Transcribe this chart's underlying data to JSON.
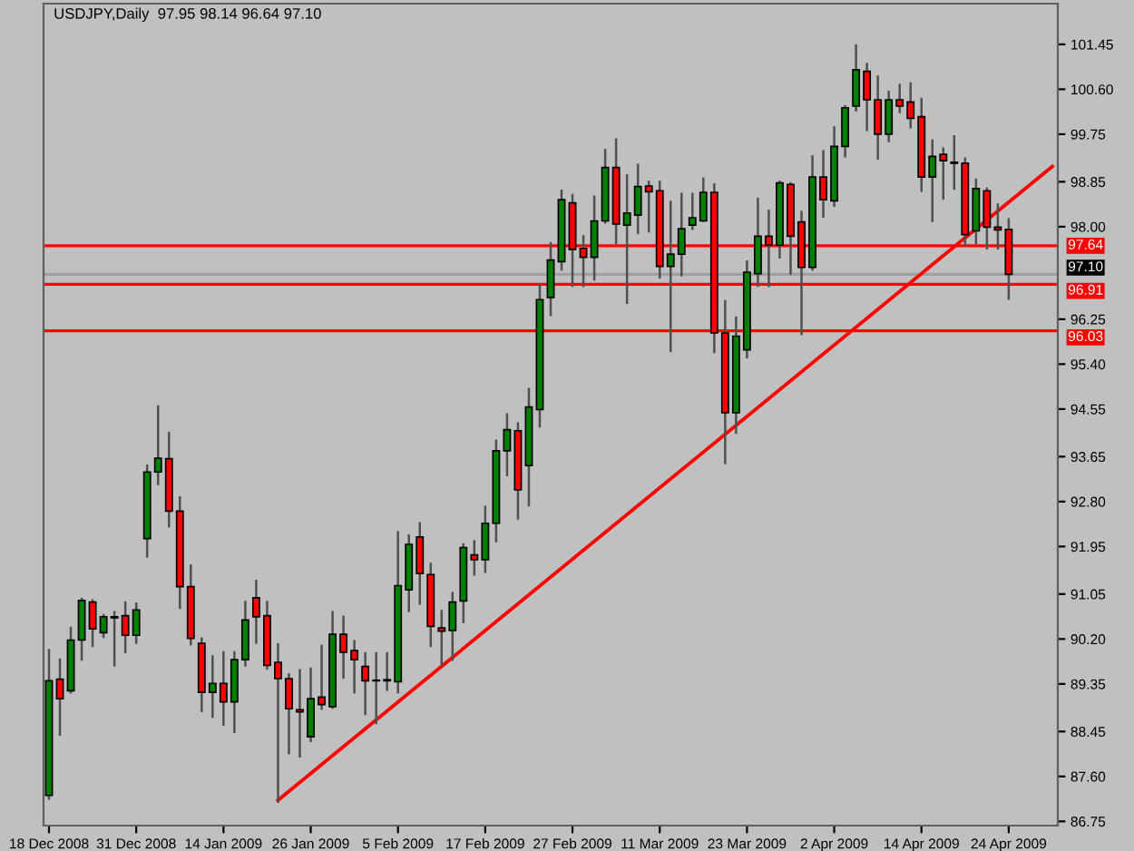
{
  "chart_data": {
    "type": "candlestick",
    "title": "USDJPY,Daily  97.95 98.14 96.64 97.10",
    "categories": [
      "18 Dec 2008",
      null,
      null,
      null,
      null,
      null,
      null,
      null,
      "31 Dec 2008",
      null,
      null,
      null,
      null,
      null,
      null,
      null,
      "14 Jan 2009",
      null,
      null,
      null,
      null,
      null,
      null,
      null,
      "26 Jan 2009",
      null,
      null,
      null,
      null,
      null,
      null,
      null,
      "5 Feb 2009",
      null,
      null,
      null,
      null,
      null,
      null,
      null,
      "17 Feb 2009",
      null,
      null,
      null,
      null,
      null,
      null,
      null,
      "27 Feb 2009",
      null,
      null,
      null,
      null,
      null,
      null,
      null,
      "11 Mar 2009",
      null,
      null,
      null,
      null,
      null,
      null,
      null,
      "23 Mar 2009",
      null,
      null,
      null,
      null,
      null,
      null,
      null,
      "2 Apr 2009",
      null,
      null,
      null,
      null,
      null,
      null,
      null,
      "14 Apr 2009",
      null,
      null,
      null,
      null,
      null,
      null,
      null,
      "24 Apr 2009",
      null,
      null,
      null,
      null
    ],
    "ohlc": [
      [
        87.24,
        89.99,
        87.18,
        89.41
      ],
      [
        89.44,
        89.81,
        88.39,
        89.07
      ],
      [
        89.22,
        90.41,
        89.19,
        90.18
      ],
      [
        90.18,
        90.96,
        89.81,
        90.93
      ],
      [
        90.9,
        90.93,
        90.07,
        90.39
      ],
      [
        90.32,
        90.65,
        90.24,
        90.62
      ],
      [
        90.6,
        90.71,
        89.7,
        90.62
      ],
      [
        90.64,
        90.89,
        89.95,
        90.27
      ],
      [
        90.27,
        90.87,
        90.13,
        90.75
      ],
      [
        92.1,
        93.48,
        91.76,
        93.36
      ],
      [
        93.36,
        94.6,
        93.13,
        93.62
      ],
      [
        93.61,
        94.1,
        92.33,
        92.62
      ],
      [
        92.62,
        92.88,
        90.79,
        91.19
      ],
      [
        91.19,
        91.59,
        90.1,
        90.21
      ],
      [
        90.12,
        90.21,
        88.84,
        89.19
      ],
      [
        89.19,
        89.87,
        88.73,
        89.36
      ],
      [
        89.36,
        89.95,
        88.58,
        89.01
      ],
      [
        89.01,
        89.95,
        88.44,
        89.81
      ],
      [
        89.81,
        90.9,
        89.7,
        90.56
      ],
      [
        90.98,
        91.3,
        90.13,
        90.62
      ],
      [
        90.64,
        90.9,
        89.64,
        89.7
      ],
      [
        89.76,
        90.1,
        87.12,
        89.45
      ],
      [
        89.45,
        89.53,
        88.04,
        88.88
      ],
      [
        88.86,
        89.61,
        87.98,
        88.82
      ],
      [
        88.35,
        89.64,
        88.27,
        89.07
      ],
      [
        89.1,
        90.07,
        88.88,
        88.96
      ],
      [
        88.92,
        90.71,
        88.9,
        90.29
      ],
      [
        90.29,
        90.62,
        89.47,
        89.95
      ],
      [
        89.98,
        90.16,
        89.19,
        89.81
      ],
      [
        89.68,
        89.93,
        88.78,
        89.41
      ],
      [
        89.42,
        89.93,
        88.61,
        89.41
      ],
      [
        89.41,
        89.93,
        89.24,
        89.43
      ],
      [
        89.39,
        92.22,
        89.19,
        91.21
      ],
      [
        91.13,
        92.16,
        90.73,
        91.99
      ],
      [
        92.13,
        92.39,
        90.87,
        91.44
      ],
      [
        91.42,
        91.62,
        90.07,
        90.44
      ],
      [
        90.41,
        90.73,
        89.72,
        90.35
      ],
      [
        90.36,
        91.07,
        89.81,
        90.9
      ],
      [
        90.92,
        91.99,
        90.52,
        91.93
      ],
      [
        91.79,
        92.05,
        91.42,
        91.7
      ],
      [
        91.7,
        92.7,
        91.47,
        92.39
      ],
      [
        92.39,
        93.95,
        92.05,
        93.76
      ],
      [
        93.76,
        94.45,
        93.3,
        94.16
      ],
      [
        94.14,
        94.28,
        92.48,
        93.02
      ],
      [
        93.48,
        94.93,
        92.73,
        94.59
      ],
      [
        94.54,
        96.91,
        94.22,
        96.62
      ],
      [
        96.66,
        97.69,
        96.33,
        97.37
      ],
      [
        97.34,
        98.68,
        97.19,
        98.51
      ],
      [
        98.45,
        98.6,
        96.88,
        97.57
      ],
      [
        97.59,
        97.82,
        96.88,
        97.42
      ],
      [
        97.42,
        98.57,
        97.0,
        98.11
      ],
      [
        98.11,
        99.45,
        98.08,
        99.12
      ],
      [
        99.12,
        99.65,
        97.69,
        98.05
      ],
      [
        98.03,
        98.97,
        96.56,
        98.26
      ],
      [
        98.22,
        99.17,
        97.88,
        98.76
      ],
      [
        98.77,
        98.85,
        97.91,
        98.66
      ],
      [
        98.68,
        98.85,
        97.04,
        97.25
      ],
      [
        97.25,
        98.47,
        95.65,
        97.48
      ],
      [
        97.48,
        98.62,
        97.08,
        97.96
      ],
      [
        98.03,
        98.62,
        97.96,
        98.17
      ],
      [
        98.11,
        98.91,
        98.11,
        98.65
      ],
      [
        98.65,
        98.8,
        95.63,
        95.99
      ],
      [
        95.99,
        96.59,
        93.53,
        94.48
      ],
      [
        94.48,
        96.28,
        94.1,
        95.93
      ],
      [
        95.67,
        97.34,
        95.53,
        97.14
      ],
      [
        97.11,
        98.53,
        96.88,
        97.82
      ],
      [
        97.82,
        98.3,
        96.88,
        97.65
      ],
      [
        97.65,
        98.85,
        97.42,
        98.83
      ],
      [
        98.8,
        98.82,
        97.11,
        97.82
      ],
      [
        98.09,
        98.28,
        95.97,
        97.23
      ],
      [
        97.23,
        99.33,
        97.19,
        98.94
      ],
      [
        98.94,
        99.43,
        98.19,
        98.51
      ],
      [
        98.49,
        99.88,
        98.4,
        99.52
      ],
      [
        99.52,
        100.28,
        99.33,
        100.25
      ],
      [
        100.28,
        101.43,
        100.2,
        100.97
      ],
      [
        100.94,
        101.08,
        99.83,
        100.4
      ],
      [
        100.4,
        100.84,
        99.29,
        99.75
      ],
      [
        99.75,
        100.55,
        99.62,
        100.4
      ],
      [
        100.4,
        100.68,
        100.17,
        100.28
      ],
      [
        100.36,
        100.71,
        99.88,
        100.05
      ],
      [
        100.08,
        100.42,
        98.68,
        98.94
      ],
      [
        98.94,
        99.63,
        98.11,
        99.33
      ],
      [
        99.37,
        99.48,
        98.53,
        99.25
      ],
      [
        99.22,
        99.71,
        98.72,
        99.2
      ],
      [
        99.2,
        99.29,
        97.65,
        97.85
      ],
      [
        97.92,
        98.89,
        97.69,
        98.72
      ],
      [
        98.68,
        98.72,
        97.59,
        97.99
      ],
      [
        97.99,
        98.42,
        97.59,
        97.94
      ],
      [
        97.95,
        98.14,
        96.64,
        97.1
      ],
      null,
      null,
      null,
      null
    ],
    "colors": [
      "#008000",
      "#ff0000",
      "#008000",
      "#008000",
      "#ff0000",
      "#008000",
      "#008000",
      "#ff0000",
      "#008000",
      "#008000",
      "#008000",
      "#ff0000",
      "#ff0000",
      "#ff0000",
      "#ff0000",
      "#008000",
      "#ff0000",
      "#008000",
      "#008000",
      "#ff0000",
      "#ff0000",
      "#ff0000",
      "#ff0000",
      "#ff0000",
      "#008000",
      "#ff0000",
      "#008000",
      "#ff0000",
      "#ff0000",
      "#ff0000",
      "#ff0000",
      "#008000",
      "#008000",
      "#008000",
      "#ff0000",
      "#ff0000",
      "#ff0000",
      "#008000",
      "#008000",
      "#ff0000",
      "#008000",
      "#008000",
      "#008000",
      "#ff0000",
      "#008000",
      "#008000",
      "#008000",
      "#008000",
      "#ff0000",
      "#ff0000",
      "#008000",
      "#008000",
      "#ff0000",
      "#008000",
      "#008000",
      "#ff0000",
      "#ff0000",
      "#008000",
      "#008000",
      "#008000",
      "#008000",
      "#ff0000",
      "#ff0000",
      "#008000",
      "#008000",
      "#008000",
      "#ff0000",
      "#008000",
      "#ff0000",
      "#ff0000",
      "#008000",
      "#ff0000",
      "#008000",
      "#008000",
      "#008000",
      "#ff0000",
      "#ff0000",
      "#008000",
      "#ff0000",
      "#ff0000",
      "#ff0000",
      "#008000",
      "#ff0000",
      "#ff0000",
      "#ff0000",
      "#008000",
      "#ff0000",
      "#ff0000",
      "#ff0000",
      null,
      null,
      null,
      null
    ],
    "series": [
      {
        "type": "line",
        "color": "#ff0000",
        "values": [
          null,
          null,
          null,
          null,
          null,
          null,
          null,
          null,
          null,
          null,
          null,
          null,
          null,
          null,
          null,
          null,
          null,
          null,
          null,
          null,
          null,
          87.15,
          null,
          null,
          null,
          null,
          null,
          null,
          null,
          null,
          null,
          null,
          null,
          null,
          null,
          null,
          null,
          null,
          null,
          null,
          null,
          null,
          null,
          null,
          null,
          null,
          null,
          null,
          null,
          null,
          null,
          null,
          null,
          null,
          null,
          null,
          null,
          null,
          null,
          null,
          null,
          null,
          null,
          null,
          null,
          null,
          null,
          null,
          null,
          null,
          null,
          null,
          null,
          null,
          null,
          null,
          null,
          null,
          null,
          null,
          null,
          null,
          null,
          null,
          null,
          null,
          null,
          null,
          null,
          null,
          null,
          null,
          99.14
        ]
      }
    ],
    "ylim": [
      86.67,
      102.22
    ],
    "yticks": [
      {
        "value": 101.45,
        "label": "101.45"
      },
      {
        "value": 100.6,
        "label": "100.60"
      },
      {
        "value": 99.75,
        "label": "99.75"
      },
      {
        "value": 98.85,
        "label": "98.85"
      },
      {
        "value": 98.0,
        "label": "98.00"
      },
      {
        "value": 96.25,
        "label": "96.25"
      },
      {
        "value": 95.4,
        "label": "95.40"
      },
      {
        "value": 94.55,
        "label": "94.55"
      },
      {
        "value": 93.65,
        "label": "93.65"
      },
      {
        "value": 92.8,
        "label": "92.80"
      },
      {
        "value": 91.95,
        "label": "91.95"
      },
      {
        "value": 91.05,
        "label": "91.05"
      },
      {
        "value": 90.2,
        "label": "90.20"
      },
      {
        "value": 89.35,
        "label": "89.35"
      },
      {
        "value": 88.45,
        "label": "88.45"
      },
      {
        "value": 87.6,
        "label": "87.60"
      },
      {
        "value": 86.75,
        "label": "86.75"
      }
    ],
    "ref_lines": [
      {
        "axis": "y",
        "value": 97.64,
        "label": "97.64",
        "color": "#ff0000"
      },
      {
        "axis": "y",
        "value": 96.91,
        "label": "96.91",
        "color": "#ff0000"
      },
      {
        "axis": "y",
        "value": 96.03,
        "label": "96.03",
        "color": "#ff0000"
      },
      {
        "axis": "y",
        "value": 97.1,
        "label": "97.10",
        "color": "#a0a0a0"
      }
    ],
    "grid": false,
    "legend": false
  }
}
